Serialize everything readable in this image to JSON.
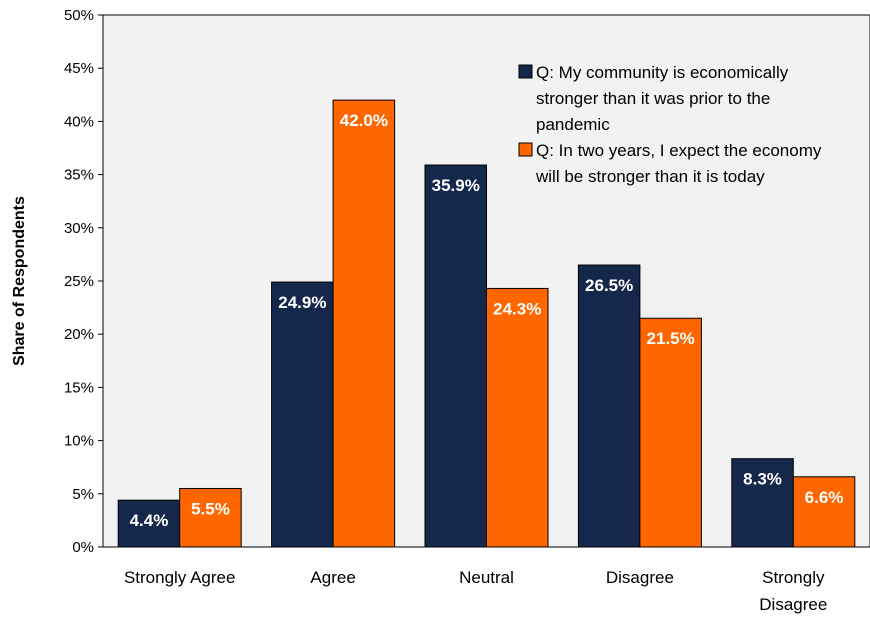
{
  "chart_data": {
    "type": "bar",
    "title": "",
    "xlabel": "",
    "ylabel": "Share of Respondents",
    "ylim": [
      0,
      50
    ],
    "y_ticks": [
      "0%",
      "5%",
      "10%",
      "15%",
      "20%",
      "25%",
      "30%",
      "35%",
      "40%",
      "45%",
      "50%"
    ],
    "grid": false,
    "legend_position": "top-right",
    "categories": [
      [
        "Strongly Agree"
      ],
      [
        "Agree"
      ],
      [
        "Neutral"
      ],
      [
        "Disagree"
      ],
      [
        "Strongly",
        "Disagree"
      ]
    ],
    "series": [
      {
        "name": [
          "Q: My community is economically",
          "stronger than it was prior to the",
          "pandemic"
        ],
        "color": "#15284b",
        "values": [
          4.4,
          24.9,
          35.9,
          26.5,
          8.3
        ],
        "labels": [
          "4.4%",
          "24.9%",
          "35.9%",
          "26.5%",
          "8.3%"
        ]
      },
      {
        "name": [
          "Q: In two years, I expect the economy",
          "will be stronger than it is today"
        ],
        "color": "#ff6600",
        "values": [
          5.5,
          42.0,
          24.3,
          21.5,
          6.6
        ],
        "labels": [
          "5.5%",
          "42.0%",
          "24.3%",
          "21.5%",
          "6.6%"
        ]
      }
    ],
    "background": "#f2f2f2"
  }
}
